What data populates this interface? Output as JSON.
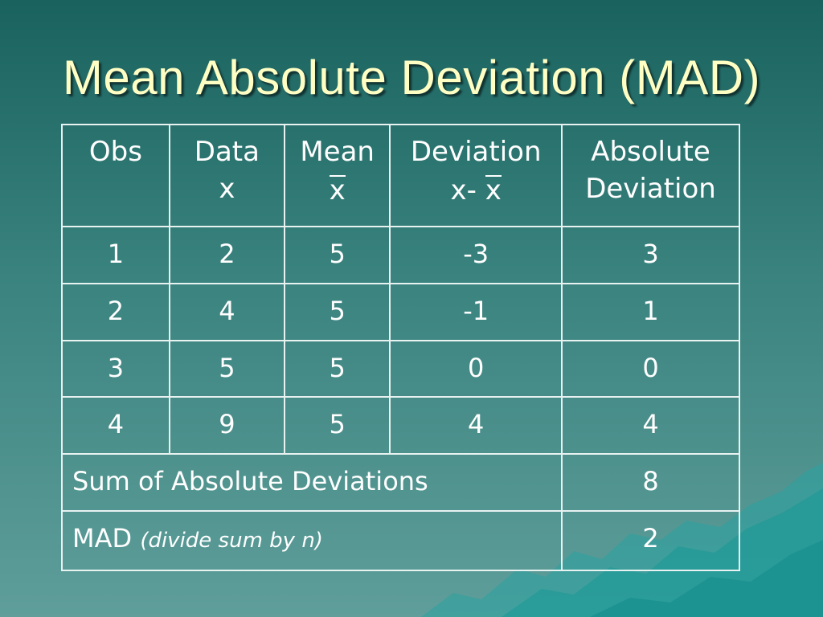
{
  "title": "Mean Absolute Deviation (MAD)",
  "table": {
    "headers": {
      "obs": "Obs",
      "data": [
        "Data",
        "x"
      ],
      "mean": [
        "Mean",
        "x"
      ],
      "deviation": [
        "Deviation",
        "x-",
        "x"
      ],
      "absolute": [
        "Absolute",
        "Deviation"
      ]
    },
    "rows": [
      [
        "1",
        "2",
        "5",
        "-3",
        "3"
      ],
      [
        "2",
        "4",
        "5",
        "-1",
        "1"
      ],
      [
        "3",
        "5",
        "5",
        "0",
        "0"
      ],
      [
        "4",
        "9",
        "5",
        "4",
        "4"
      ]
    ],
    "sum": {
      "label": "Sum of Absolute Deviations",
      "value": "8"
    },
    "mad": {
      "label": "MAD",
      "note": "(divide sum by n)",
      "value": "2"
    }
  }
}
